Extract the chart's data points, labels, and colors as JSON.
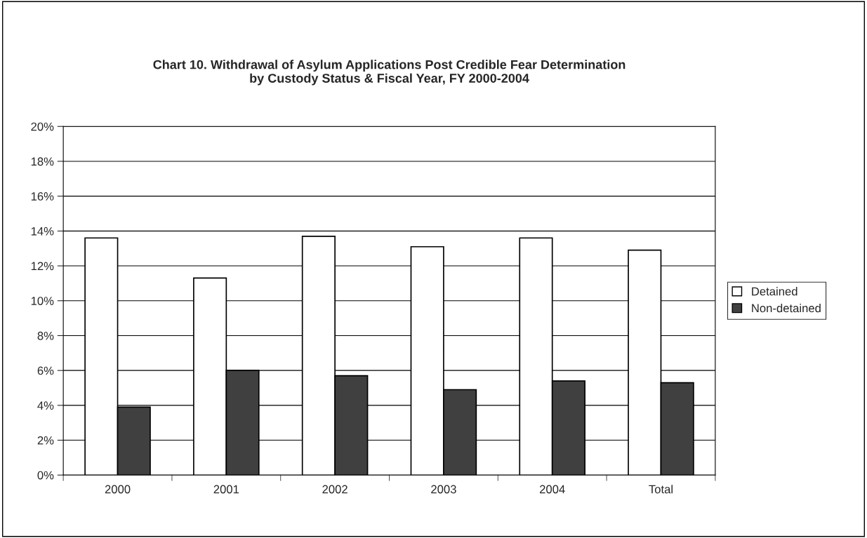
{
  "chart_data": {
    "type": "bar",
    "title": "Chart 10. Withdrawal of Asylum Applications Post Credible Fear Determination\nby Custody Status & Fiscal Year, FY 2000-2004",
    "categories": [
      "2000",
      "2001",
      "2002",
      "2003",
      "2004",
      "Total"
    ],
    "series": [
      {
        "name": "Detained",
        "color": "#ffffff",
        "values": [
          13.6,
          11.3,
          13.7,
          13.1,
          13.6,
          12.9
        ]
      },
      {
        "name": "Non-detained",
        "color": "#404040",
        "values": [
          3.9,
          6.0,
          5.7,
          4.9,
          5.4,
          5.3
        ]
      }
    ],
    "ylim": [
      0,
      20
    ],
    "yticks": [
      {
        "value": 0,
        "label": "0%"
      },
      {
        "value": 2,
        "label": "2%"
      },
      {
        "value": 4,
        "label": "4%"
      },
      {
        "value": 6,
        "label": "6%"
      },
      {
        "value": 8,
        "label": "8%"
      },
      {
        "value": 10,
        "label": "10%"
      },
      {
        "value": 12,
        "label": "12%"
      },
      {
        "value": 14,
        "label": "14%"
      },
      {
        "value": 16,
        "label": "16%"
      },
      {
        "value": 18,
        "label": "18%"
      },
      {
        "value": 20,
        "label": "20%"
      }
    ],
    "grid": "y",
    "legend": "right"
  }
}
